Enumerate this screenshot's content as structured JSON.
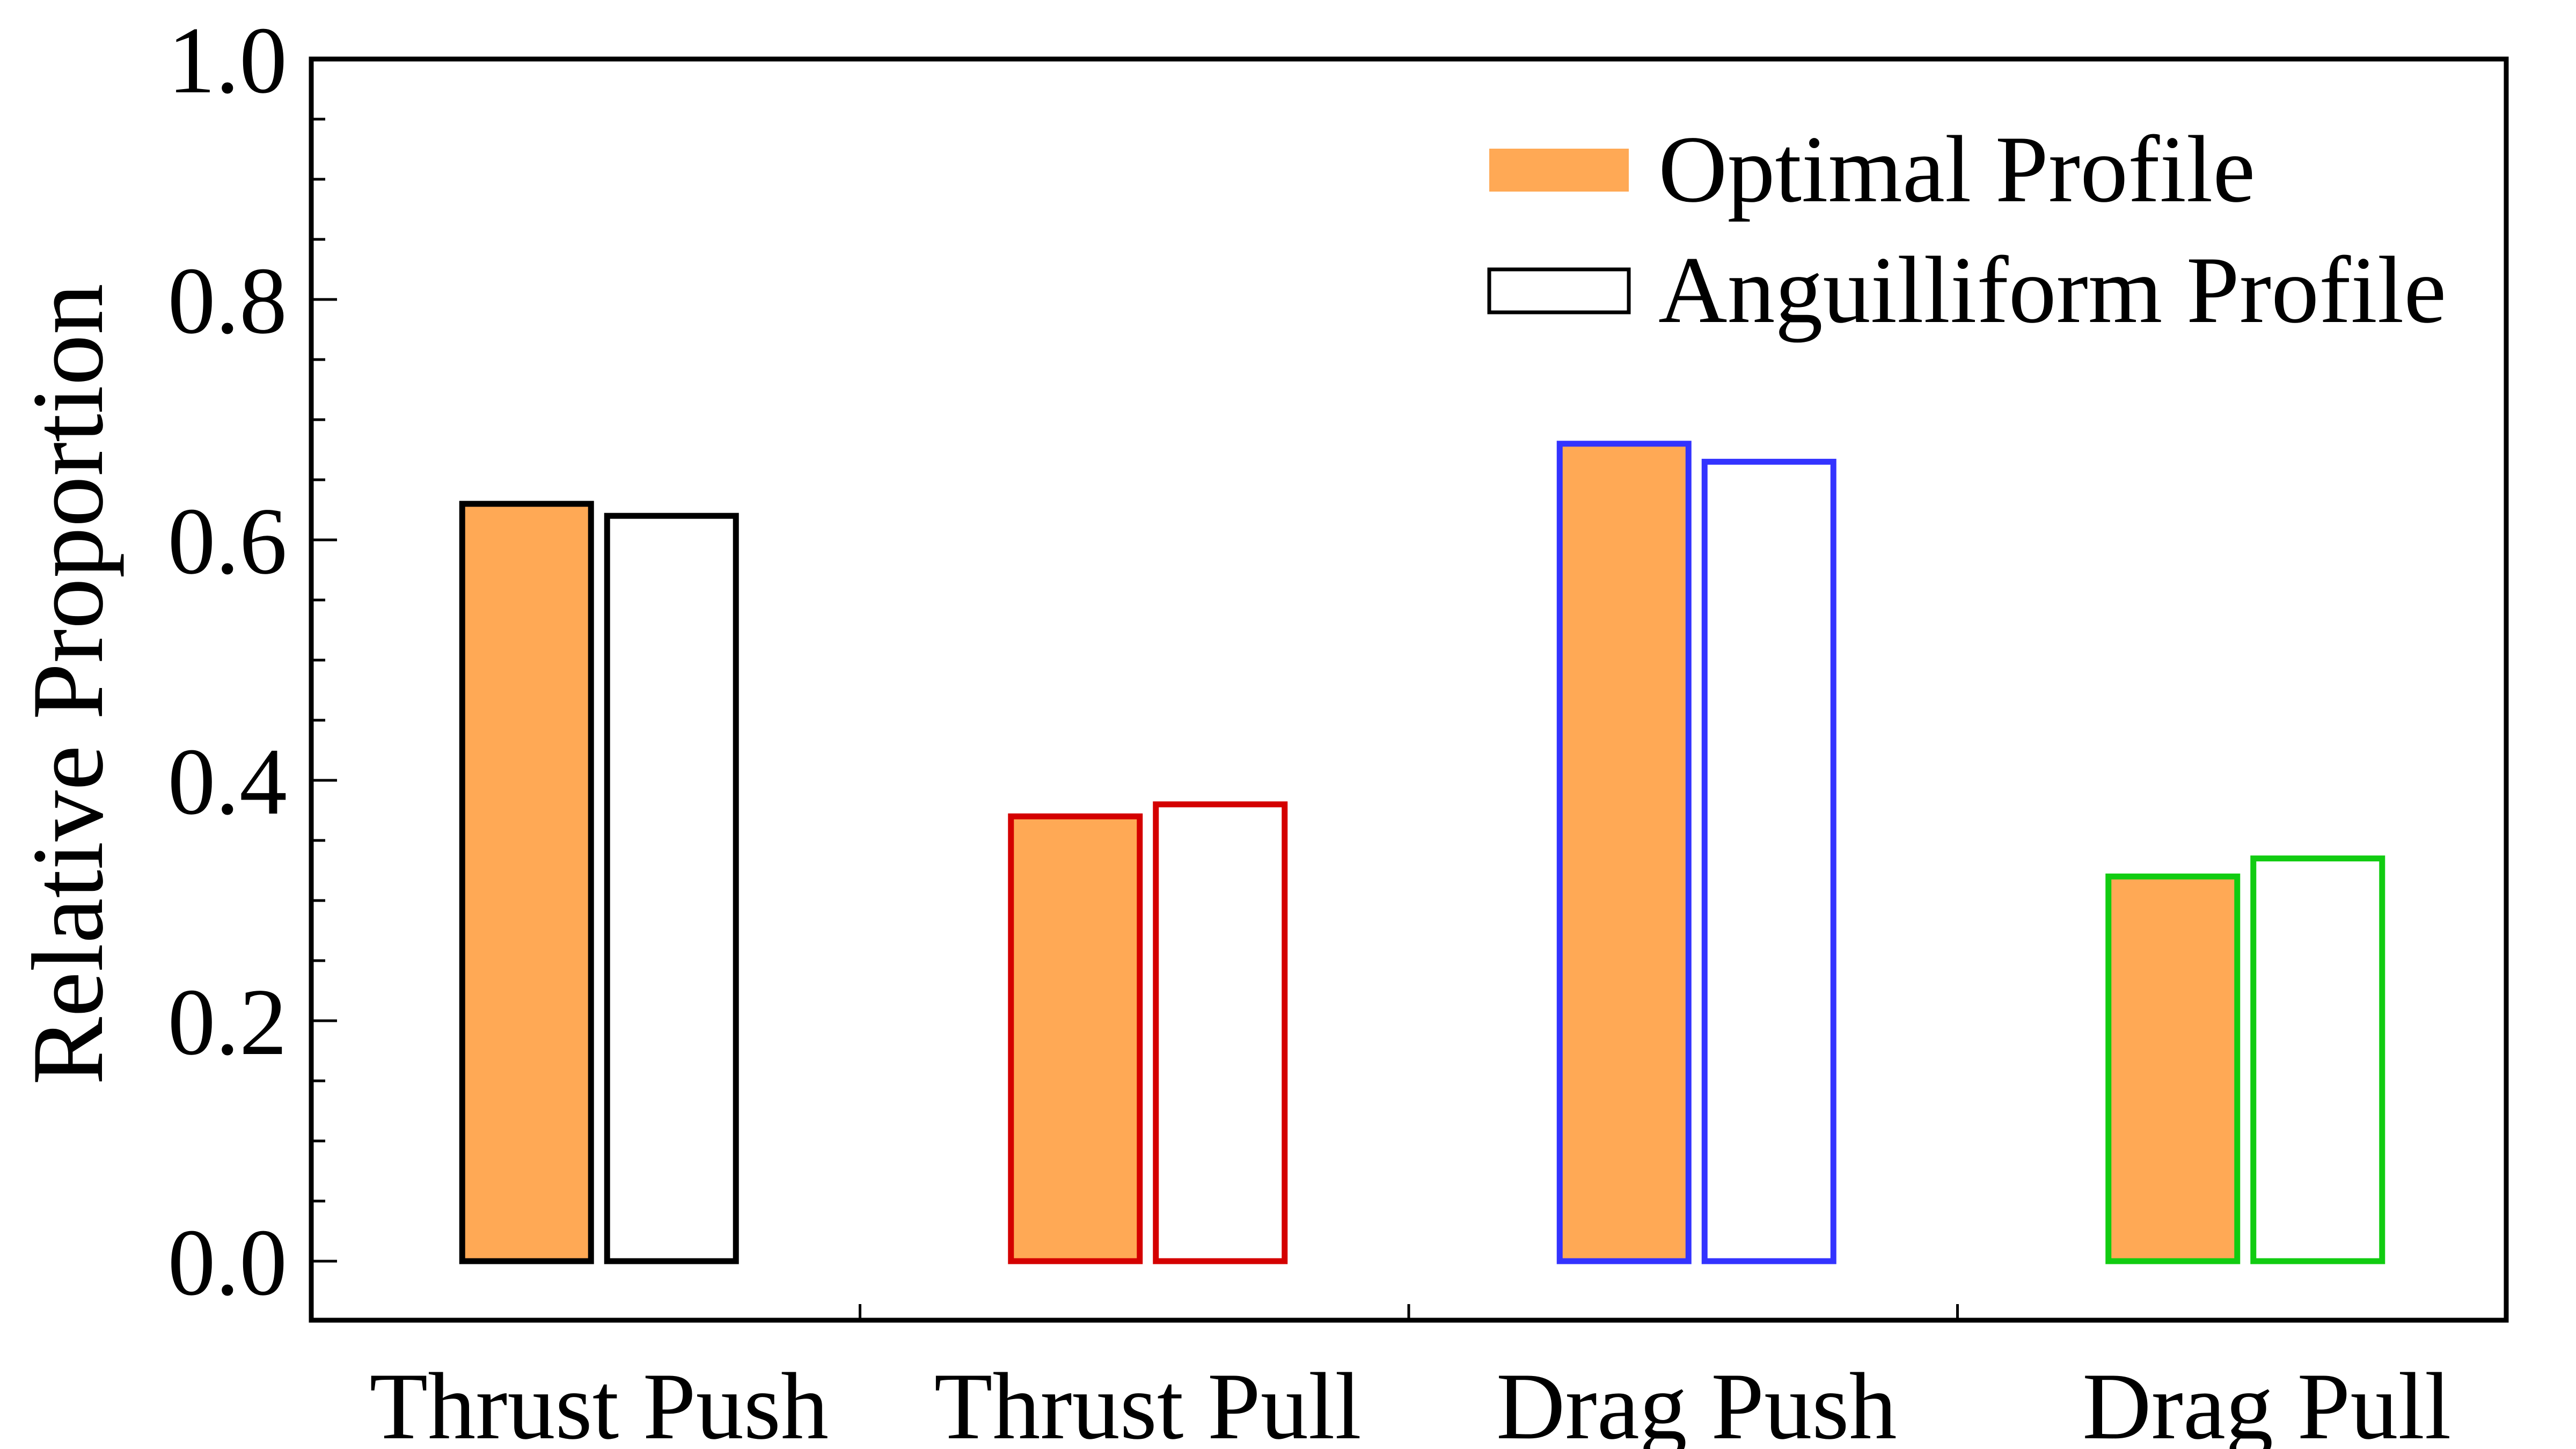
{
  "chart_data": {
    "type": "bar",
    "title": "",
    "xlabel": "",
    "ylabel": "Relative Proportion",
    "ylim": [
      0.0,
      1.0
    ],
    "yticks": [
      "0.0",
      "0.2",
      "0.4",
      "0.6",
      "0.8",
      "1.0"
    ],
    "grid": false,
    "legend_position": "top-right",
    "categories": [
      "Thrust Push",
      "Thrust Pull",
      "Drag Push",
      "Drag Pull"
    ],
    "category_colors": [
      "#000000",
      "#d40000",
      "#3333ff",
      "#11cc11"
    ],
    "series": [
      {
        "name": "Optimal Profile",
        "fill": "#ffa955",
        "values": [
          0.63,
          0.37,
          0.68,
          0.32
        ]
      },
      {
        "name": "Anguilliform Profile",
        "fill": "#ffffff",
        "values": [
          0.62,
          0.38,
          0.665,
          0.335
        ]
      }
    ]
  }
}
